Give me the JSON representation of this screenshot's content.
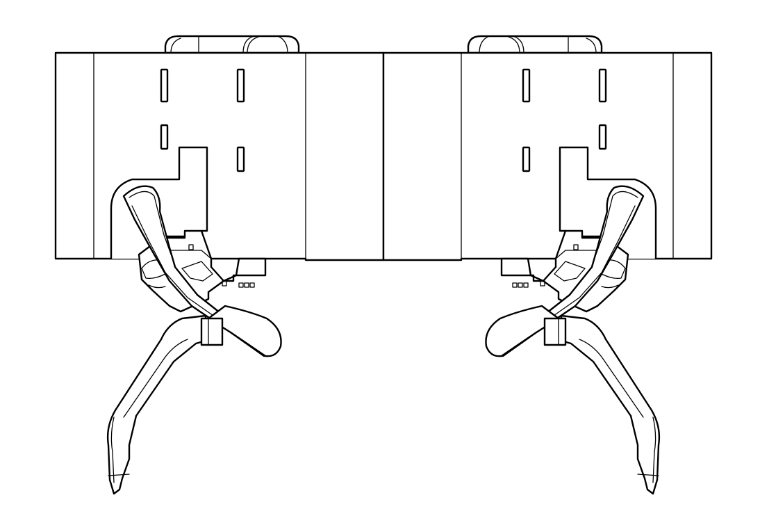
{
  "drawing": {
    "background_color": "#ffffff",
    "line_color": "#000000",
    "parts": [
      "housing",
      "top-knob-left",
      "top-knob-right",
      "latch-assembly-left",
      "latch-assembly-right",
      "gripper-arm-left",
      "gripper-arm-right"
    ]
  }
}
